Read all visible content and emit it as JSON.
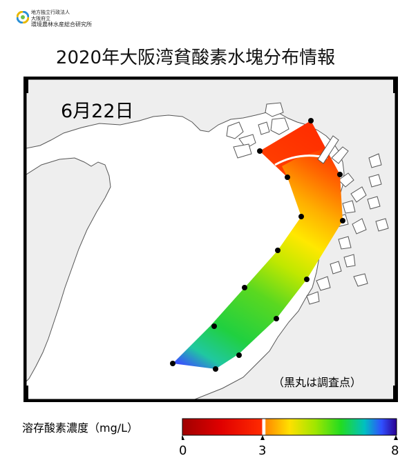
{
  "header": {
    "org_line1": "地方独立行政法人",
    "org_line2": "大阪府立",
    "org_line3": "環境農林水産総合研究所",
    "title": "2020年大阪湾貧酸素水塊分布情報"
  },
  "map": {
    "date": "6月22日",
    "note": "（黒丸は調査点）"
  },
  "legend": {
    "title": "溶存酸素濃度（mg/L）",
    "ticks": [
      "0",
      "3",
      "8"
    ],
    "colors": [
      "#a00000",
      "#ff2a00",
      "#ff9600",
      "#ffe800",
      "#a0e600",
      "#22dc20",
      "#00c0c0",
      "#3050ff",
      "#2a0090"
    ]
  }
}
